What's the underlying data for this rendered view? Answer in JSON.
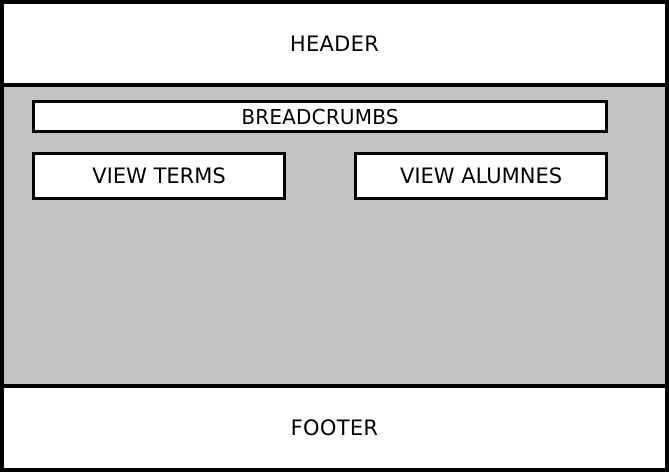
{
  "header": {
    "label": "HEADER"
  },
  "breadcrumbs": {
    "label": "BREADCRUMBS"
  },
  "actions": {
    "view_terms_label": "VIEW TERMS",
    "view_alumnes_label": "VIEW ALUMNES"
  },
  "footer": {
    "label": "FOOTER"
  },
  "colors": {
    "content_background": "#c3c3c3",
    "border": "#000000",
    "surface": "#ffffff"
  }
}
